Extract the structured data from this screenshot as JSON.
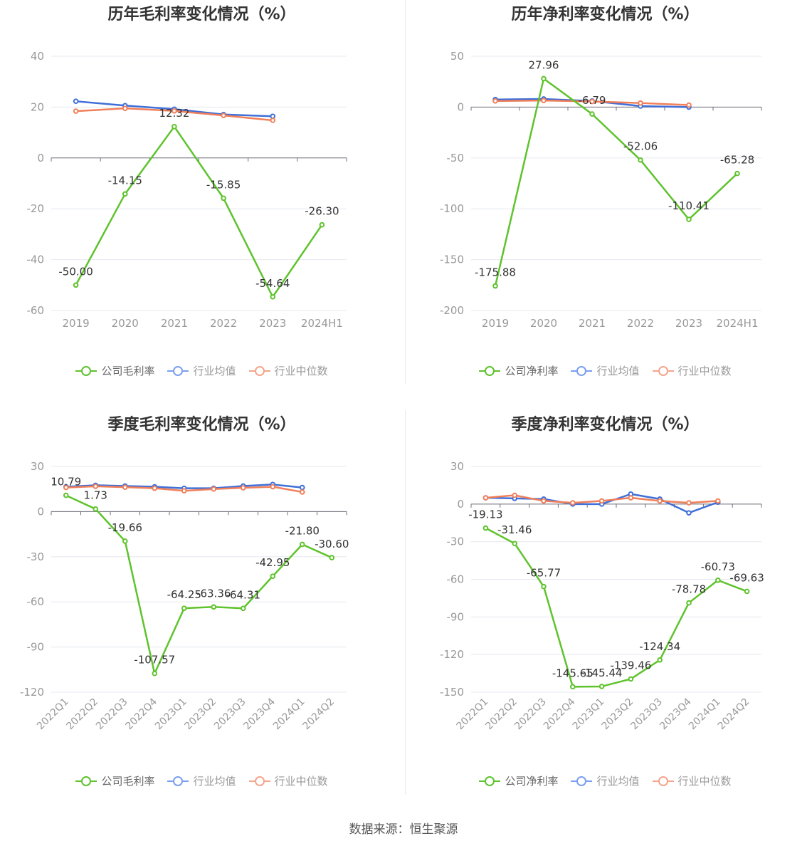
{
  "source_label": "数据来源：恒生聚源",
  "colors": {
    "company": "#5ec32c",
    "avg": "#3f6fd8",
    "median": "#f07f5a"
  },
  "legends": {
    "gross": [
      "公司毛利率",
      "行业均值",
      "行业中位数"
    ],
    "net": [
      "公司净利率",
      "行业均值",
      "行业中位数"
    ]
  },
  "chart_data": [
    {
      "type": "line",
      "title": "历年毛利率变化情况（%）",
      "categories": [
        "2019",
        "2020",
        "2021",
        "2022",
        "2023",
        "2024H1"
      ],
      "ylim": [
        -60,
        40
      ],
      "yticks": [
        40,
        20,
        0,
        -20,
        -40,
        -60
      ],
      "grid": true,
      "legend_position": "bottom",
      "series": [
        {
          "name": "公司毛利率",
          "values": [
            -50.0,
            -14.15,
            12.32,
            -15.85,
            -54.64,
            -26.3
          ],
          "labels": [
            "-50.00",
            "-14.15",
            "12.32",
            "-15.85",
            "-54.64",
            "-26.30"
          ]
        },
        {
          "name": "行业均值",
          "values": [
            22.3,
            20.6,
            19.2,
            17.1,
            16.4,
            null
          ]
        },
        {
          "name": "行业中位数",
          "values": [
            18.4,
            19.5,
            18.5,
            16.7,
            14.8,
            null
          ]
        }
      ]
    },
    {
      "type": "line",
      "title": "历年净利率变化情况（%）",
      "categories": [
        "2019",
        "2020",
        "2021",
        "2022",
        "2023",
        "2024H1"
      ],
      "ylim": [
        -200,
        50
      ],
      "yticks": [
        50,
        0,
        -50,
        -100,
        -150,
        -200
      ],
      "grid": true,
      "legend_position": "bottom",
      "series": [
        {
          "name": "公司净利率",
          "values": [
            -175.88,
            27.96,
            -6.79,
            -52.06,
            -110.41,
            -65.28
          ],
          "labels": [
            "-175.88",
            "27.96",
            "-6.79",
            "-52.06",
            "-110.41",
            "-65.28"
          ]
        },
        {
          "name": "行业均值",
          "values": [
            7.5,
            8.0,
            6.0,
            1.0,
            0.0,
            null
          ]
        },
        {
          "name": "行业中位数",
          "values": [
            6.0,
            6.5,
            5.5,
            4.0,
            2.0,
            null
          ]
        }
      ]
    },
    {
      "type": "line",
      "title": "季度毛利率变化情况（%）",
      "categories": [
        "2022Q1",
        "2022Q2",
        "2022Q3",
        "2022Q4",
        "2023Q1",
        "2023Q2",
        "2023Q3",
        "2023Q4",
        "2024Q1",
        "2024Q2"
      ],
      "ylim": [
        -120,
        30
      ],
      "yticks": [
        30,
        0,
        -30,
        -60,
        -90,
        -120
      ],
      "grid": true,
      "legend_position": "bottom",
      "series": [
        {
          "name": "公司毛利率",
          "values": [
            10.79,
            1.73,
            -19.66,
            -107.57,
            -64.25,
            -63.36,
            -64.31,
            -42.95,
            -21.8,
            -30.6
          ],
          "labels": [
            "10.79",
            "1.73",
            "-19.66",
            "-107.57",
            "-64.25",
            "-63.36",
            "-64.31",
            "-42.95",
            "-21.80",
            "-30.60"
          ]
        },
        {
          "name": "行业均值",
          "values": [
            16.5,
            17.5,
            17.0,
            16.5,
            15.5,
            15.5,
            17.0,
            18.0,
            16.0,
            null
          ]
        },
        {
          "name": "行业中位数",
          "values": [
            16.0,
            16.8,
            16.2,
            15.5,
            13.8,
            15.0,
            15.8,
            16.5,
            13.0,
            null
          ]
        }
      ]
    },
    {
      "type": "line",
      "title": "季度净利率变化情况（%）",
      "categories": [
        "2022Q1",
        "2022Q2",
        "2022Q3",
        "2022Q4",
        "2023Q1",
        "2023Q2",
        "2023Q3",
        "2023Q4",
        "2024Q1",
        "2024Q2"
      ],
      "ylim": [
        -150,
        30
      ],
      "yticks": [
        30,
        0,
        -30,
        -60,
        -90,
        -120,
        -150
      ],
      "grid": true,
      "legend_position": "bottom",
      "series": [
        {
          "name": "公司净利率",
          "values": [
            -19.13,
            -31.46,
            -65.77,
            -145.65,
            -145.44,
            -139.46,
            -124.34,
            -78.78,
            -60.73,
            -69.63
          ],
          "labels": [
            "-19.13",
            "-31.46",
            "-65.77",
            "-145.65",
            "-145.44",
            "-139.46",
            "-124.34",
            "-78.78",
            "-60.73",
            "-69.63"
          ]
        },
        {
          "name": "行业均值",
          "values": [
            5.0,
            4.5,
            4.0,
            0.0,
            0.0,
            8.0,
            4.0,
            -7.0,
            1.5,
            null
          ]
        },
        {
          "name": "行业中位数",
          "values": [
            5.0,
            7.0,
            2.5,
            1.0,
            2.5,
            5.0,
            2.5,
            1.0,
            2.5,
            null
          ]
        }
      ]
    }
  ]
}
